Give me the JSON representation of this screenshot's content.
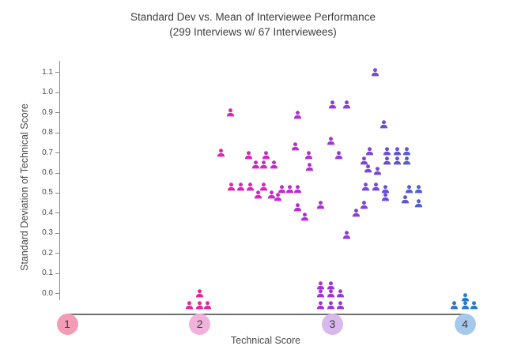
{
  "title": {
    "line1": "Standard Dev vs. Mean of Interviewee Performance",
    "line2": "(299 Interviews w/ 67 Interviewees)"
  },
  "y_axis": {
    "label": "Standard Deviation of Technical Score",
    "tick_labels": [
      "0.0",
      "0.1",
      "0.2",
      "0.3",
      "0.4",
      "0.5",
      "0.6",
      "0.7",
      "0.8",
      "0.9",
      "1.0",
      "1.1"
    ],
    "min": 0.0,
    "max": 1.1
  },
  "x_axis": {
    "label": "Technical Score",
    "ticks": [
      {
        "value": 1,
        "label": "1",
        "circle_color": "#f29cb6"
      },
      {
        "value": 2,
        "label": "2",
        "circle_color": "#f0b2da"
      },
      {
        "value": 3,
        "label": "3",
        "circle_color": "#d9b8ec"
      },
      {
        "value": 4,
        "label": "4",
        "circle_color": "#a6c8ea"
      }
    ]
  },
  "chart_data": {
    "type": "scatter",
    "marker_shape": "person-icon",
    "title": "Standard Dev vs. Mean of Interviewee Performance",
    "subtitle": "(299 Interviews w/ 67 Interviewees)",
    "xlabel": "Technical Score",
    "ylabel": "Standard Deviation of Technical Score",
    "xlim": [
      1,
      4
    ],
    "ylim": [
      0,
      1.1
    ],
    "grid": false,
    "legend": false,
    "point_count": 67,
    "color_by": "x",
    "color_stops": [
      [
        1.0,
        "#e84a7a"
      ],
      [
        2.0,
        "#e02a96"
      ],
      [
        2.5,
        "#cb29c7"
      ],
      [
        3.0,
        "#9d36d5"
      ],
      [
        3.5,
        "#5f55d2"
      ],
      [
        4.0,
        "#2b7ac8"
      ]
    ],
    "points": [
      [
        2.23,
        0.9
      ],
      [
        2.74,
        0.89
      ],
      [
        3.0,
        0.94
      ],
      [
        3.11,
        0.94
      ],
      [
        3.32,
        1.1
      ],
      [
        3.39,
        0.84
      ],
      [
        2.99,
        0.76
      ],
      [
        2.16,
        0.7
      ],
      [
        2.37,
        0.69
      ],
      [
        2.5,
        0.69
      ],
      [
        2.72,
        0.73
      ],
      [
        2.82,
        0.69
      ],
      [
        3.05,
        0.69
      ],
      [
        2.42,
        0.64
      ],
      [
        2.48,
        0.64
      ],
      [
        2.56,
        0.64
      ],
      [
        2.83,
        0.63
      ],
      [
        3.28,
        0.71
      ],
      [
        3.41,
        0.71
      ],
      [
        3.49,
        0.71
      ],
      [
        3.56,
        0.71
      ],
      [
        3.24,
        0.66
      ],
      [
        3.41,
        0.66
      ],
      [
        3.49,
        0.66
      ],
      [
        3.56,
        0.66
      ],
      [
        3.27,
        0.62
      ],
      [
        3.34,
        0.61
      ],
      [
        2.24,
        0.53
      ],
      [
        2.31,
        0.53
      ],
      [
        2.38,
        0.53
      ],
      [
        2.48,
        0.53
      ],
      [
        2.62,
        0.52
      ],
      [
        2.68,
        0.52
      ],
      [
        2.74,
        0.52
      ],
      [
        2.44,
        0.49
      ],
      [
        2.54,
        0.49
      ],
      [
        2.59,
        0.48
      ],
      [
        3.25,
        0.53
      ],
      [
        3.33,
        0.53
      ],
      [
        3.4,
        0.52
      ],
      [
        3.4,
        0.48
      ],
      [
        3.58,
        0.52
      ],
      [
        3.65,
        0.52
      ],
      [
        3.55,
        0.47
      ],
      [
        3.65,
        0.45
      ],
      [
        3.24,
        0.44
      ],
      [
        2.74,
        0.43
      ],
      [
        2.91,
        0.44
      ],
      [
        2.79,
        0.38
      ],
      [
        3.18,
        0.4
      ],
      [
        3.11,
        0.29
      ],
      [
        2.0,
        0.0
      ],
      [
        1.92,
        -0.06
      ],
      [
        2.0,
        -0.06
      ],
      [
        2.06,
        -0.06
      ],
      [
        2.91,
        0.04
      ],
      [
        2.99,
        0.04
      ],
      [
        2.91,
        0.0
      ],
      [
        2.99,
        0.0
      ],
      [
        3.06,
        0.0
      ],
      [
        2.91,
        -0.06
      ],
      [
        2.99,
        -0.06
      ],
      [
        3.06,
        -0.06
      ],
      [
        4.0,
        -0.02
      ],
      [
        3.92,
        -0.06
      ],
      [
        4.0,
        -0.06
      ],
      [
        4.07,
        -0.06
      ]
    ]
  }
}
